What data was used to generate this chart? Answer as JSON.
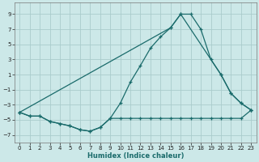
{
  "background_color": "#cce8e8",
  "grid_color": "#aacccc",
  "line_color": "#1a6b6b",
  "xlabel": "Humidex (Indice chaleur)",
  "xlim": [
    -0.5,
    23.5
  ],
  "ylim": [
    -8,
    10.5
  ],
  "xticks": [
    0,
    1,
    2,
    3,
    4,
    5,
    6,
    7,
    8,
    9,
    10,
    11,
    12,
    13,
    14,
    15,
    16,
    17,
    18,
    19,
    20,
    21,
    22,
    23
  ],
  "yticks": [
    -7,
    -5,
    -3,
    -1,
    1,
    3,
    5,
    7,
    9
  ],
  "series1_x": [
    0,
    1,
    2,
    3,
    4,
    5,
    6,
    7,
    8,
    9,
    10,
    11,
    12,
    13,
    14,
    15,
    16,
    17,
    18,
    19,
    20,
    21,
    22,
    23
  ],
  "series1_y": [
    -4.0,
    -4.5,
    -4.5,
    -5.2,
    -5.5,
    -5.8,
    -6.3,
    -6.5,
    -6.0,
    -4.8,
    -4.8,
    -4.8,
    -4.8,
    -4.8,
    -4.8,
    -4.8,
    -4.8,
    -4.8,
    -4.8,
    -4.8,
    -4.8,
    -4.8,
    -4.8,
    -3.7
  ],
  "series2_x": [
    0,
    1,
    2,
    3,
    4,
    5,
    6,
    7,
    8,
    9,
    10,
    11,
    12,
    13,
    14,
    15,
    16,
    17,
    18,
    19,
    20,
    21,
    22,
    23
  ],
  "series2_y": [
    -4.0,
    -4.5,
    -4.5,
    -5.2,
    -5.5,
    -5.8,
    -6.3,
    -6.5,
    -6.0,
    -4.8,
    -2.8,
    0.0,
    2.2,
    4.5,
    6.0,
    7.2,
    9.0,
    9.0,
    7.0,
    3.0,
    1.0,
    -1.5,
    -2.8,
    -3.7
  ],
  "series3_x": [
    0,
    15,
    16,
    20,
    21,
    22,
    23
  ],
  "series3_y": [
    -4.0,
    7.2,
    9.0,
    1.0,
    -1.5,
    -2.8,
    -3.7
  ]
}
